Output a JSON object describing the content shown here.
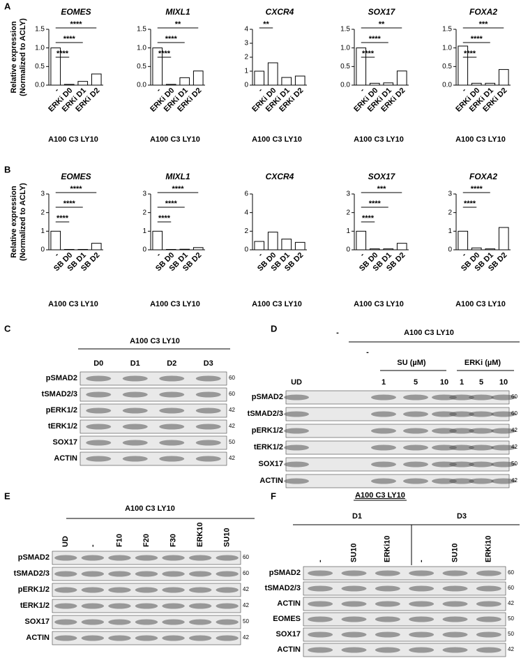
{
  "panel_labels": [
    "A",
    "B",
    "C",
    "D",
    "E",
    "F"
  ],
  "chart_data": [
    {
      "type": "bar",
      "title": "EOMES",
      "ylabel": [
        "Relative expression",
        "(Normalized to ACLY)"
      ],
      "xlabel": "A100 C3 LY10",
      "categories": [
        "-",
        "ERKi D0",
        "ERKi D1",
        "ERKi D2"
      ],
      "values": [
        1.0,
        0.02,
        0.1,
        0.3
      ],
      "ylim": [
        0,
        1.5
      ],
      "yticks": [
        {
          "value": 0,
          "label": "0.0"
        },
        0.5,
        {
          "value": 1,
          "label": "1.0"
        },
        1.5
      ],
      "annotations": [
        "****",
        "****",
        "****"
      ],
      "color": "#ffffff"
    },
    {
      "type": "bar",
      "title": "MIXL1",
      "xlabel": "A100 C3 LY10",
      "categories": [
        "-",
        "ERKi D0",
        "ERKi D1",
        "ERKi D2"
      ],
      "values": [
        1.0,
        0.02,
        0.2,
        0.38
      ],
      "ylim": [
        0,
        1.5
      ],
      "yticks": [
        {
          "value": 0,
          "label": "0.0"
        },
        0.5,
        {
          "value": 1,
          "label": "1.0"
        },
        1.5
      ],
      "annotations": [
        "****",
        "****",
        "**"
      ],
      "color": "#ffffff"
    },
    {
      "type": "bar",
      "title": "CXCR4",
      "xlabel": "A100 C3 LY10",
      "categories": [
        "-",
        "ERKi D0",
        "ERKi D1",
        "ERKi D2"
      ],
      "values": [
        1.0,
        1.6,
        0.55,
        0.65
      ],
      "ylim": [
        0,
        4
      ],
      "yticks": [
        0,
        1,
        2,
        3,
        4
      ],
      "annotations": [
        "**"
      ],
      "color": "#ffffff"
    },
    {
      "type": "bar",
      "title": "SOX17",
      "xlabel": "A100 C3 LY10",
      "categories": [
        "-",
        "ERKi D0",
        "ERKi D1",
        "ERKi D2"
      ],
      "values": [
        1.0,
        0.05,
        0.06,
        0.38
      ],
      "ylim": [
        0,
        1.5
      ],
      "yticks": [
        {
          "value": 0,
          "label": "0.0"
        },
        0.5,
        {
          "value": 1,
          "label": "1.0"
        },
        1.5
      ],
      "annotations": [
        "****",
        "****",
        "**"
      ],
      "color": "#ffffff"
    },
    {
      "type": "bar",
      "title": "FOXA2",
      "xlabel": "A100 C3 LY10",
      "categories": [
        "-",
        "ERKi D0",
        "ERKi D1",
        "ERKi D2"
      ],
      "values": [
        1.05,
        0.05,
        0.05,
        0.42
      ],
      "ylim": [
        0,
        1.5
      ],
      "yticks": [
        {
          "value": 0,
          "label": "0.0"
        },
        0.5,
        {
          "value": 1,
          "label": "1.0"
        },
        1.5
      ],
      "annotations": [
        "****",
        "****",
        "***"
      ],
      "color": "#ffffff"
    },
    {
      "type": "bar",
      "title": "EOMES",
      "ylabel": [
        "Relative expression",
        "(Normalized to ACLY)"
      ],
      "xlabel": "A100 C3 LY10",
      "categories": [
        "-",
        "SB D0",
        "SB D1",
        "SB D2"
      ],
      "values": [
        1.0,
        0.02,
        0.02,
        0.35
      ],
      "ylim": [
        0,
        3
      ],
      "yticks": [
        0,
        1,
        2,
        3
      ],
      "annotations": [
        "****",
        "****",
        "****"
      ],
      "color": "#ffffff"
    },
    {
      "type": "bar",
      "title": "MIXL1",
      "xlabel": "A100 C3 LY10",
      "categories": [
        "-",
        "SB D0",
        "SB D1",
        "SB D2"
      ],
      "values": [
        1.0,
        0.02,
        0.03,
        0.12
      ],
      "ylim": [
        0,
        3
      ],
      "yticks": [
        0,
        1,
        2,
        3
      ],
      "annotations": [
        "****",
        "****",
        "****"
      ],
      "color": "#ffffff"
    },
    {
      "type": "bar",
      "title": "CXCR4",
      "xlabel": "A100 C3 LY10",
      "categories": [
        "-",
        "SB D0",
        "SB D1",
        "SB D2"
      ],
      "values": [
        0.9,
        1.9,
        1.15,
        0.8
      ],
      "ylim": [
        0,
        6
      ],
      "yticks": [
        0,
        2,
        4,
        6
      ],
      "annotations": [],
      "color": "#ffffff"
    },
    {
      "type": "bar",
      "title": "SOX17",
      "xlabel": "A100 C3 LY10",
      "categories": [
        "-",
        "SB D0",
        "SB D1",
        "SB D2"
      ],
      "values": [
        1.0,
        0.05,
        0.05,
        0.35
      ],
      "ylim": [
        0,
        3
      ],
      "yticks": [
        0,
        1,
        2,
        3
      ],
      "annotations": [
        "****",
        "****",
        "***"
      ],
      "color": "#ffffff"
    },
    {
      "type": "bar",
      "title": "FOXA2",
      "xlabel": "A100 C3 LY10",
      "categories": [
        "-",
        "SB D0",
        "SB D1",
        "SB D2"
      ],
      "values": [
        1.0,
        0.1,
        0.05,
        1.2
      ],
      "ylim": [
        0,
        3
      ],
      "yticks": [
        0,
        1,
        2,
        3
      ],
      "annotations": [
        "****",
        "****"
      ],
      "color": "#ffffff"
    }
  ],
  "blots": [
    {
      "header": "A100 C3 LY10",
      "lanes": [
        "D0",
        "D1",
        "D2",
        "D3"
      ],
      "rows": [
        "pSMAD2",
        "tSMAD2/3",
        "pERK1/2",
        "tERK1/2",
        "SOX17",
        "ACTIN"
      ],
      "markers": [
        60,
        60,
        42,
        42,
        50,
        42
      ]
    },
    {
      "header": "A100 C3 LY10",
      "groups": [
        "-",
        "-",
        "SU (µM)",
        "ERKi (µM)"
      ],
      "lanes": [
        "UD",
        "1",
        "5",
        "10",
        "1",
        "5",
        "10"
      ],
      "rows": [
        "pSMAD2",
        "tSMAD2/3",
        "pERK1/2",
        "tERK1/2",
        "SOX17",
        "ACTIN"
      ],
      "markers": [
        60,
        60,
        42,
        42,
        50,
        42
      ]
    },
    {
      "header": "A100 C3 LY10",
      "lanes": [
        "UD",
        "-",
        "F10",
        "F20",
        "F30",
        "ERK10",
        "SU10"
      ],
      "rows": [
        "pSMAD2",
        "tSMAD2/3",
        "pERK1/2",
        "tERK1/2",
        "SOX17",
        "ACTIN"
      ],
      "markers": [
        60,
        60,
        42,
        42,
        50,
        42
      ]
    },
    {
      "header": "A100 C3 LY10",
      "groups": [
        "D1",
        "D3"
      ],
      "lanes": [
        "-",
        "SU10",
        "ERKi10",
        "-",
        "SU10",
        "ERKi10"
      ],
      "rows": [
        "pSMAD2",
        "tSMAD2/3",
        "ACTIN",
        "EOMES",
        "SOX17",
        "ACTIN"
      ],
      "markers": [
        60,
        60,
        42,
        50,
        50,
        42
      ]
    }
  ]
}
